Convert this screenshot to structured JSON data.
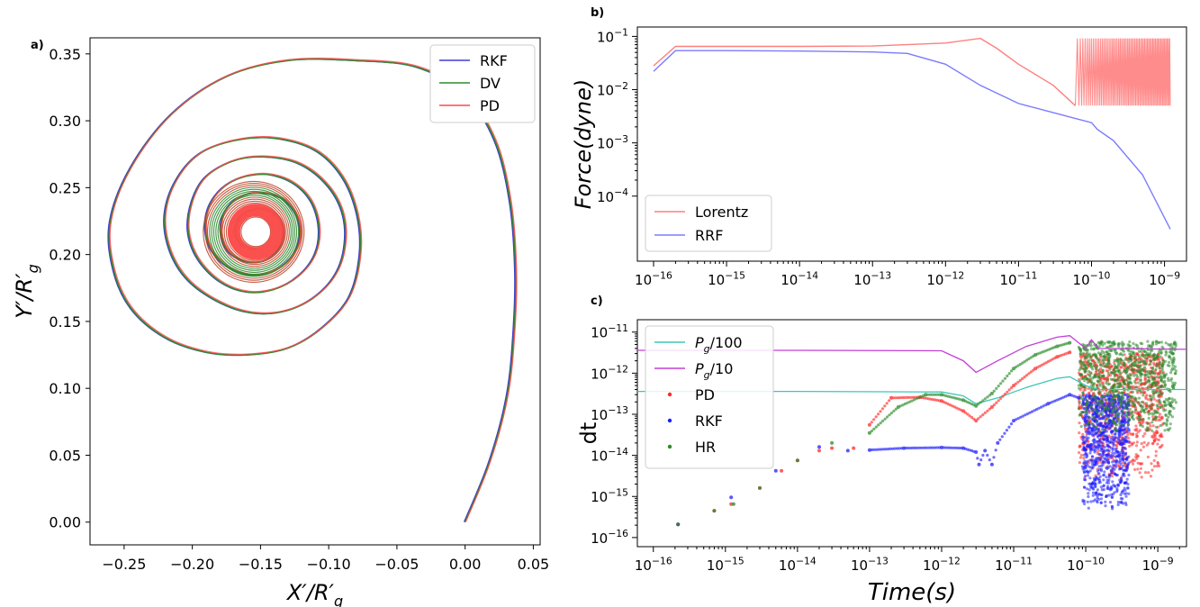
{
  "chart_data": [
    {
      "panel": "a)",
      "type": "line",
      "xlabel": "X'/R'_g",
      "ylabel": "Y'/R'_g",
      "xlim": [
        -0.275,
        0.055
      ],
      "ylim": [
        -0.017,
        0.362
      ],
      "xticks": [
        -0.25,
        -0.2,
        -0.15,
        -0.1,
        -0.05,
        0.0,
        0.05
      ],
      "xtick_labels": [
        "−0.25",
        "−0.20",
        "−0.15",
        "−0.10",
        "−0.05",
        "0.00",
        "0.05"
      ],
      "yticks": [
        0.0,
        0.05,
        0.1,
        0.15,
        0.2,
        0.25,
        0.3,
        0.35
      ],
      "ytick_labels": [
        "0.00",
        "0.05",
        "0.10",
        "0.15",
        "0.20",
        "0.25",
        "0.30",
        "0.35"
      ],
      "legend": {
        "position": "top-right",
        "entries": [
          "RKF",
          "DV",
          "PD"
        ]
      },
      "series": [
        {
          "name": "RKF",
          "color": "#3b3bd6"
        },
        {
          "name": "DV",
          "color": "#2e8b2e"
        },
        {
          "name": "PD",
          "color": "#ff4a4a"
        }
      ],
      "spiral": {
        "start": [
          0.0,
          0.0
        ],
        "first_loop_extent": {
          "xmin": -0.262,
          "xmax": 0.037,
          "ymin": 0.125,
          "ymax": 0.345
        },
        "drift_center": [
          -0.155,
          0.217
        ],
        "points": [
          [
            0.0,
            0.0
          ],
          [
            0.018,
            0.045
          ],
          [
            0.031,
            0.095
          ],
          [
            0.036,
            0.145
          ],
          [
            0.037,
            0.19
          ],
          [
            0.033,
            0.24
          ],
          [
            0.022,
            0.285
          ],
          [
            0.0,
            0.32
          ],
          [
            -0.035,
            0.34
          ],
          [
            -0.08,
            0.345
          ],
          [
            -0.13,
            0.345
          ],
          [
            -0.175,
            0.333
          ],
          [
            -0.215,
            0.305
          ],
          [
            -0.245,
            0.265
          ],
          [
            -0.26,
            0.225
          ],
          [
            -0.258,
            0.19
          ],
          [
            -0.245,
            0.16
          ],
          [
            -0.22,
            0.138
          ],
          [
            -0.19,
            0.127
          ],
          [
            -0.16,
            0.125
          ],
          [
            -0.13,
            0.13
          ],
          [
            -0.105,
            0.145
          ],
          [
            -0.085,
            0.168
          ],
          [
            -0.077,
            0.2
          ],
          [
            -0.079,
            0.23
          ],
          [
            -0.09,
            0.258
          ],
          [
            -0.11,
            0.278
          ],
          [
            -0.14,
            0.287
          ],
          [
            -0.17,
            0.285
          ],
          [
            -0.195,
            0.275
          ],
          [
            -0.212,
            0.255
          ],
          [
            -0.22,
            0.23
          ],
          [
            -0.217,
            0.205
          ],
          [
            -0.205,
            0.183
          ],
          [
            -0.185,
            0.167
          ],
          [
            -0.16,
            0.157
          ],
          [
            -0.135,
            0.157
          ],
          [
            -0.112,
            0.167
          ],
          [
            -0.095,
            0.185
          ],
          [
            -0.088,
            0.208
          ],
          [
            -0.09,
            0.232
          ],
          [
            -0.102,
            0.253
          ],
          [
            -0.122,
            0.268
          ],
          [
            -0.147,
            0.273
          ],
          [
            -0.17,
            0.27
          ],
          [
            -0.19,
            0.258
          ],
          [
            -0.2,
            0.24
          ],
          [
            -0.203,
            0.218
          ],
          [
            -0.196,
            0.197
          ],
          [
            -0.18,
            0.18
          ],
          [
            -0.16,
            0.172
          ],
          [
            -0.14,
            0.174
          ],
          [
            -0.122,
            0.184
          ],
          [
            -0.11,
            0.2
          ],
          [
            -0.107,
            0.22
          ],
          [
            -0.113,
            0.24
          ],
          [
            -0.127,
            0.254
          ],
          [
            -0.147,
            0.26
          ],
          [
            -0.168,
            0.256
          ],
          [
            -0.183,
            0.244
          ],
          [
            -0.19,
            0.227
          ],
          [
            -0.188,
            0.208
          ],
          [
            -0.177,
            0.193
          ],
          [
            -0.16,
            0.185
          ],
          [
            -0.142,
            0.187
          ],
          [
            -0.128,
            0.197
          ],
          [
            -0.121,
            0.212
          ],
          [
            -0.123,
            0.228
          ],
          [
            -0.133,
            0.241
          ],
          [
            -0.149,
            0.246
          ],
          [
            -0.165,
            0.243
          ],
          [
            -0.176,
            0.232
          ],
          [
            -0.179,
            0.217
          ],
          [
            -0.174,
            0.203
          ],
          [
            -0.162,
            0.195
          ],
          [
            -0.148,
            0.195
          ],
          [
            -0.137,
            0.203
          ],
          [
            -0.133,
            0.216
          ],
          [
            -0.137,
            0.228
          ],
          [
            -0.148,
            0.234
          ],
          [
            -0.16,
            0.232
          ],
          [
            -0.167,
            0.224
          ],
          [
            -0.168,
            0.214
          ],
          [
            -0.162,
            0.206
          ],
          [
            -0.153,
            0.204
          ]
        ]
      }
    },
    {
      "panel": "b)",
      "type": "line",
      "xscale": "log",
      "yscale": "log",
      "xlabel": "",
      "ylabel": "Force(dyne)",
      "xlim": [
        6e-17,
        2e-09
      ],
      "ylim": [
        6e-06,
        0.15
      ],
      "xtick_labels": [
        "10^-16",
        "10^-15",
        "10^-14",
        "10^-13",
        "10^-12",
        "10^-11",
        "10^-10",
        "10^-9"
      ],
      "ytick_labels": [
        "10^-1",
        "10^-2",
        "10^-3",
        "10^-4"
      ],
      "legend": {
        "position": "bottom-left",
        "entries": [
          "Lorentz",
          "RRF"
        ]
      },
      "series": [
        {
          "name": "Lorentz",
          "color": "#ff7f7f",
          "x": [
            1e-16,
            2e-16,
            1e-15,
            1e-14,
            1e-13,
            1e-12,
            3e-12,
            5e-12,
            1e-11,
            3e-11,
            6e-11
          ],
          "values": [
            0.028,
            0.065,
            0.065,
            0.065,
            0.066,
            0.075,
            0.092,
            0.06,
            0.03,
            0.012,
            0.005
          ],
          "oscillation": {
            "x_from": 6e-11,
            "x_to": 1.2e-09,
            "y_min": 0.005,
            "y_max": 0.092
          }
        },
        {
          "name": "RRF",
          "color": "#7b7bff",
          "x": [
            1e-16,
            2e-16,
            1e-15,
            1e-14,
            1e-13,
            3e-13,
            1e-12,
            3e-12,
            1e-11,
            3e-11,
            1e-10,
            1.2e-10,
            2e-10,
            5e-10,
            1.2e-09
          ],
          "values": [
            0.022,
            0.054,
            0.054,
            0.053,
            0.051,
            0.048,
            0.03,
            0.012,
            0.0055,
            0.0037,
            0.0024,
            0.0018,
            0.0011,
            0.00025,
            2.4e-05
          ]
        }
      ]
    },
    {
      "panel": "c)",
      "type": "scatter",
      "xscale": "log",
      "yscale": "log",
      "xlabel": "Time(s)",
      "ylabel": "dt",
      "xlim": [
        6e-17,
        2.5e-09
      ],
      "ylim": [
        6e-17,
        2e-11
      ],
      "xtick_labels": [
        "10^-16",
        "10^-15",
        "10^-14",
        "10^-13",
        "10^-12",
        "10^-11",
        "10^-10",
        "10^-9"
      ],
      "ytick_labels": [
        "10^-11",
        "10^-12",
        "10^-13",
        "10^-14",
        "10^-15",
        "10^-16"
      ],
      "legend": {
        "position": "top-left",
        "entries": [
          "Pg/100",
          "Pg/10",
          "PD",
          "RKF",
          "HR"
        ]
      },
      "series": [
        {
          "name": "Pg/100",
          "style": "line",
          "color": "#3cc7b8",
          "x": [
            6e-17,
            1e-14,
            1e-12,
            2e-12,
            3e-12,
            6e-12,
            1.5e-11,
            4e-11,
            6e-11,
            1e-10,
            1.2e-10,
            1.5e-10,
            2.5e-09
          ],
          "values": [
            3.6e-13,
            3.6e-13,
            3.5e-13,
            2.8e-13,
            1.8e-13,
            2.5e-13,
            4.5e-13,
            7.5e-13,
            8.2e-13,
            5e-13,
            4.5e-13,
            4e-13,
            4e-13
          ]
        },
        {
          "name": "Pg/10",
          "style": "line",
          "color": "#c33fd6",
          "x": [
            6e-17,
            1e-14,
            1e-12,
            2e-12,
            3e-12,
            6e-12,
            1.5e-11,
            4e-11,
            6e-11,
            1e-10,
            1.2e-10,
            1.5e-10,
            2.5e-09
          ],
          "values": [
            3.6e-12,
            3.6e-12,
            3.5e-12,
            2e-12,
            1.05e-12,
            2e-12,
            4.5e-12,
            7.5e-12,
            8.2e-12,
            4e-12,
            6.5e-12,
            4e-12,
            3.8e-12
          ]
        },
        {
          "name": "PD",
          "style": "scatter",
          "color": "#ff2a2a",
          "x": [
            2.2e-16,
            7e-16,
            1.2e-15,
            3e-15,
            6e-15,
            1e-14,
            2e-14,
            3e-14,
            6e-14,
            1e-13,
            2e-13,
            5e-13,
            1e-12,
            2e-12,
            3e-12,
            5e-12,
            1e-11,
            2e-11,
            4e-11,
            6e-11
          ],
          "values": [
            2.1e-16,
            4.5e-16,
            6.5e-16,
            1.6e-15,
            4.2e-15,
            7.5e-15,
            1.3e-14,
            1.5e-14,
            1.5e-14,
            5.5e-14,
            2.5e-13,
            2.6e-13,
            2.1e-13,
            1.2e-13,
            7e-14,
            1.5e-13,
            5e-13,
            1.3e-12,
            2.5e-12,
            3.2e-12
          ],
          "oscillation": {
            "x_from": 8e-11,
            "x_to": 1.2e-09,
            "y_min": 2.8e-15,
            "y_max": 3e-12
          }
        },
        {
          "name": "RKF",
          "style": "scatter",
          "color": "#1f1fff",
          "x": [
            2.2e-16,
            1.2e-15,
            5e-15,
            2e-14,
            5e-14,
            1e-13,
            3e-13,
            1e-12,
            2e-12,
            3e-12,
            3.3e-12,
            4e-12,
            5e-12,
            6e-12,
            1e-11,
            3e-11,
            6e-11,
            8e-11
          ],
          "values": [
            2.1e-16,
            9.5e-16,
            4.2e-15,
            1.6e-14,
            1.3e-14,
            1.35e-14,
            1.5e-14,
            1.55e-14,
            1.5e-14,
            1.2e-14,
            6e-15,
            1.3e-14,
            6e-15,
            2e-14,
            7e-14,
            1.8e-13,
            3e-13,
            2.5e-13
          ],
          "oscillation": {
            "x_from": 9e-11,
            "x_to": 4e-10,
            "y_min": 5e-16,
            "y_max": 3e-13
          }
        },
        {
          "name": "HR",
          "style": "scatter",
          "color": "#2a8a2a",
          "x": [
            2.2e-16,
            7e-16,
            1.3e-15,
            3e-15,
            1e-14,
            3e-14,
            1e-13,
            2.5e-13,
            6e-13,
            1e-12,
            2e-12,
            3e-12,
            5e-12,
            1e-11,
            2e-11,
            4e-11,
            6e-11
          ],
          "values": [
            2.1e-16,
            4.5e-16,
            6.5e-16,
            1.6e-15,
            7.5e-15,
            2e-14,
            3.5e-14,
            1.5e-13,
            3e-13,
            3e-13,
            2.2e-13,
            1.6e-13,
            3.2e-13,
            1.3e-12,
            2.8e-12,
            4.5e-12,
            5.5e-12
          ],
          "oscillation": {
            "x_from": 8e-11,
            "x_to": 1.8e-09,
            "y_min": 3.5e-14,
            "y_max": 6e-12
          }
        }
      ]
    }
  ]
}
